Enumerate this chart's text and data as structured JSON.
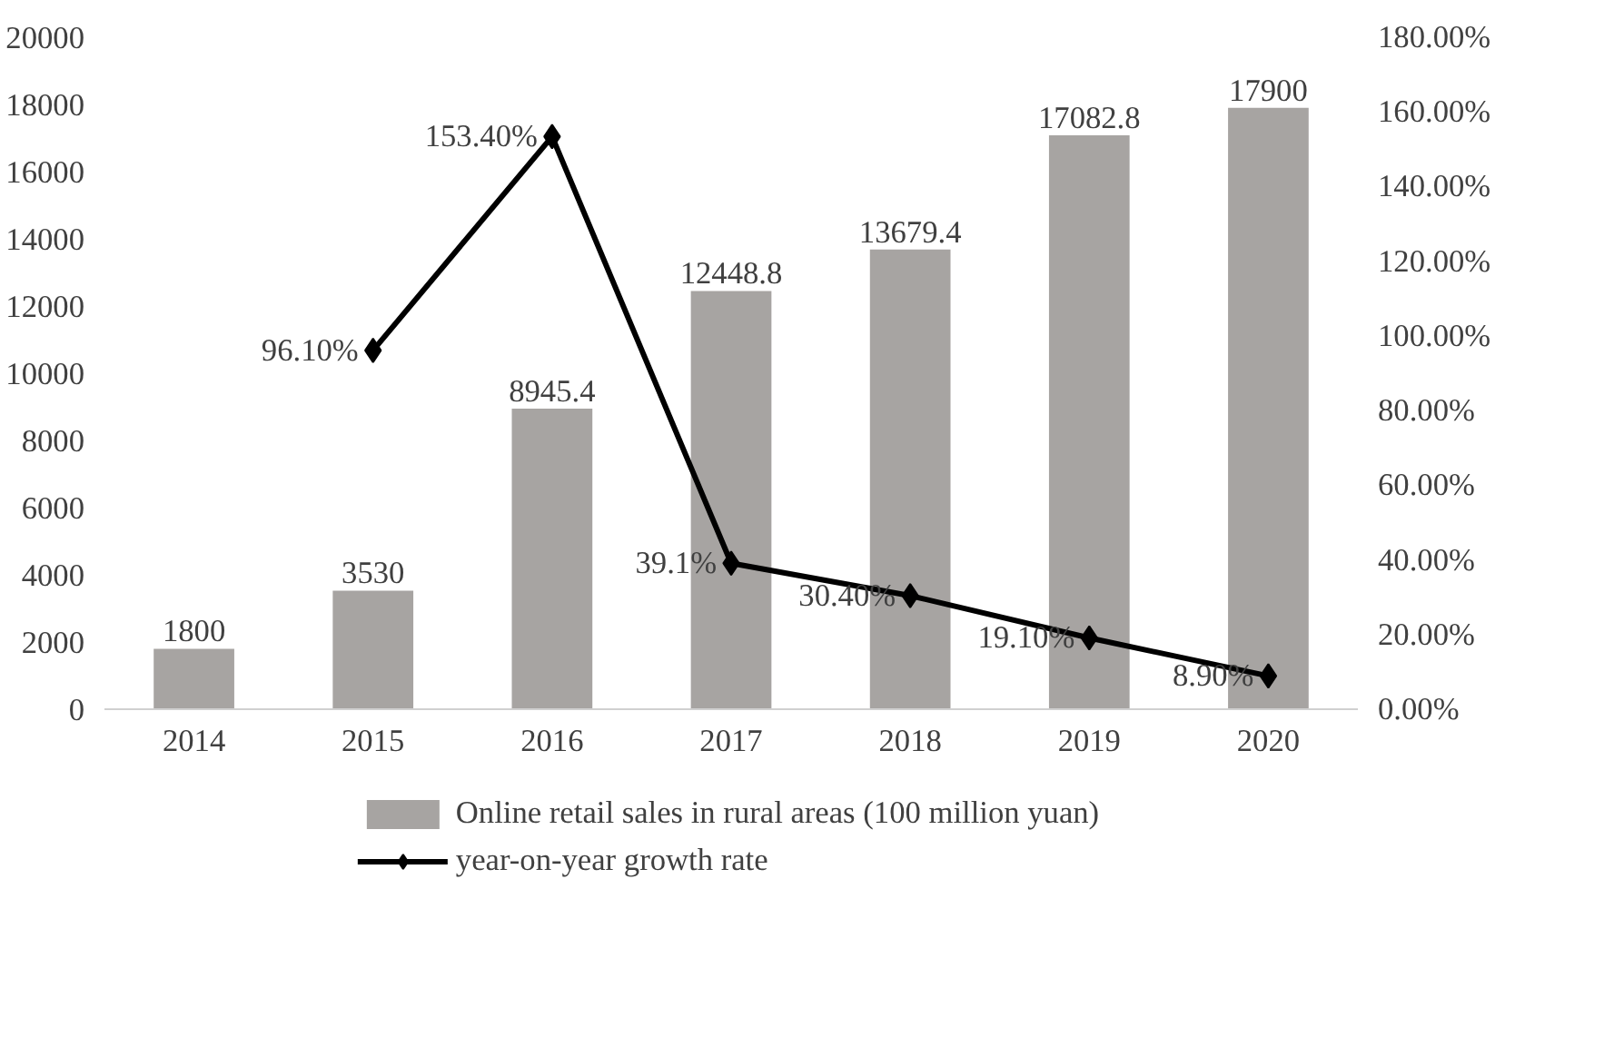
{
  "chart_data": {
    "type": "bar",
    "categories": [
      "2014",
      "2015",
      "2016",
      "2017",
      "2018",
      "2019",
      "2020"
    ],
    "series": [
      {
        "name": "Online retail sales in rural areas (100 million yuan)",
        "color": "#a7a4a2",
        "values": [
          1800,
          3530,
          8945.4,
          12448.8,
          13679.4,
          17082.8,
          17900
        ],
        "data_labels": true
      },
      {
        "name": "year-on-year growth rate",
        "type": "line",
        "axis": "y2",
        "color": "#000000",
        "marker": "diamond",
        "values": [
          null,
          96.1,
          153.4,
          39.1,
          30.4,
          19.1,
          8.9
        ],
        "value_labels": [
          null,
          "96.10%",
          "153.40%",
          "39.1%",
          "30.40%",
          "19.10%",
          "8.90%"
        ]
      }
    ],
    "ylim": [
      0,
      20000
    ],
    "yticks": [
      0,
      2000,
      4000,
      6000,
      8000,
      10000,
      12000,
      14000,
      16000,
      18000,
      20000
    ],
    "y2lim": [
      0,
      180
    ],
    "y2ticks": [
      {
        "value": 0,
        "label": "0.00%"
      },
      {
        "value": 20,
        "label": "20.00%"
      },
      {
        "value": 40,
        "label": "40.00%"
      },
      {
        "value": 60,
        "label": "60.00%"
      },
      {
        "value": 80,
        "label": "80.00%"
      },
      {
        "value": 100,
        "label": "100.00%"
      },
      {
        "value": 120,
        "label": "120.00%"
      },
      {
        "value": 140,
        "label": "140.00%"
      },
      {
        "value": 160,
        "label": "160.00%"
      },
      {
        "value": 180,
        "label": "180.00%"
      }
    ],
    "grid": false,
    "legend": "bottom"
  }
}
